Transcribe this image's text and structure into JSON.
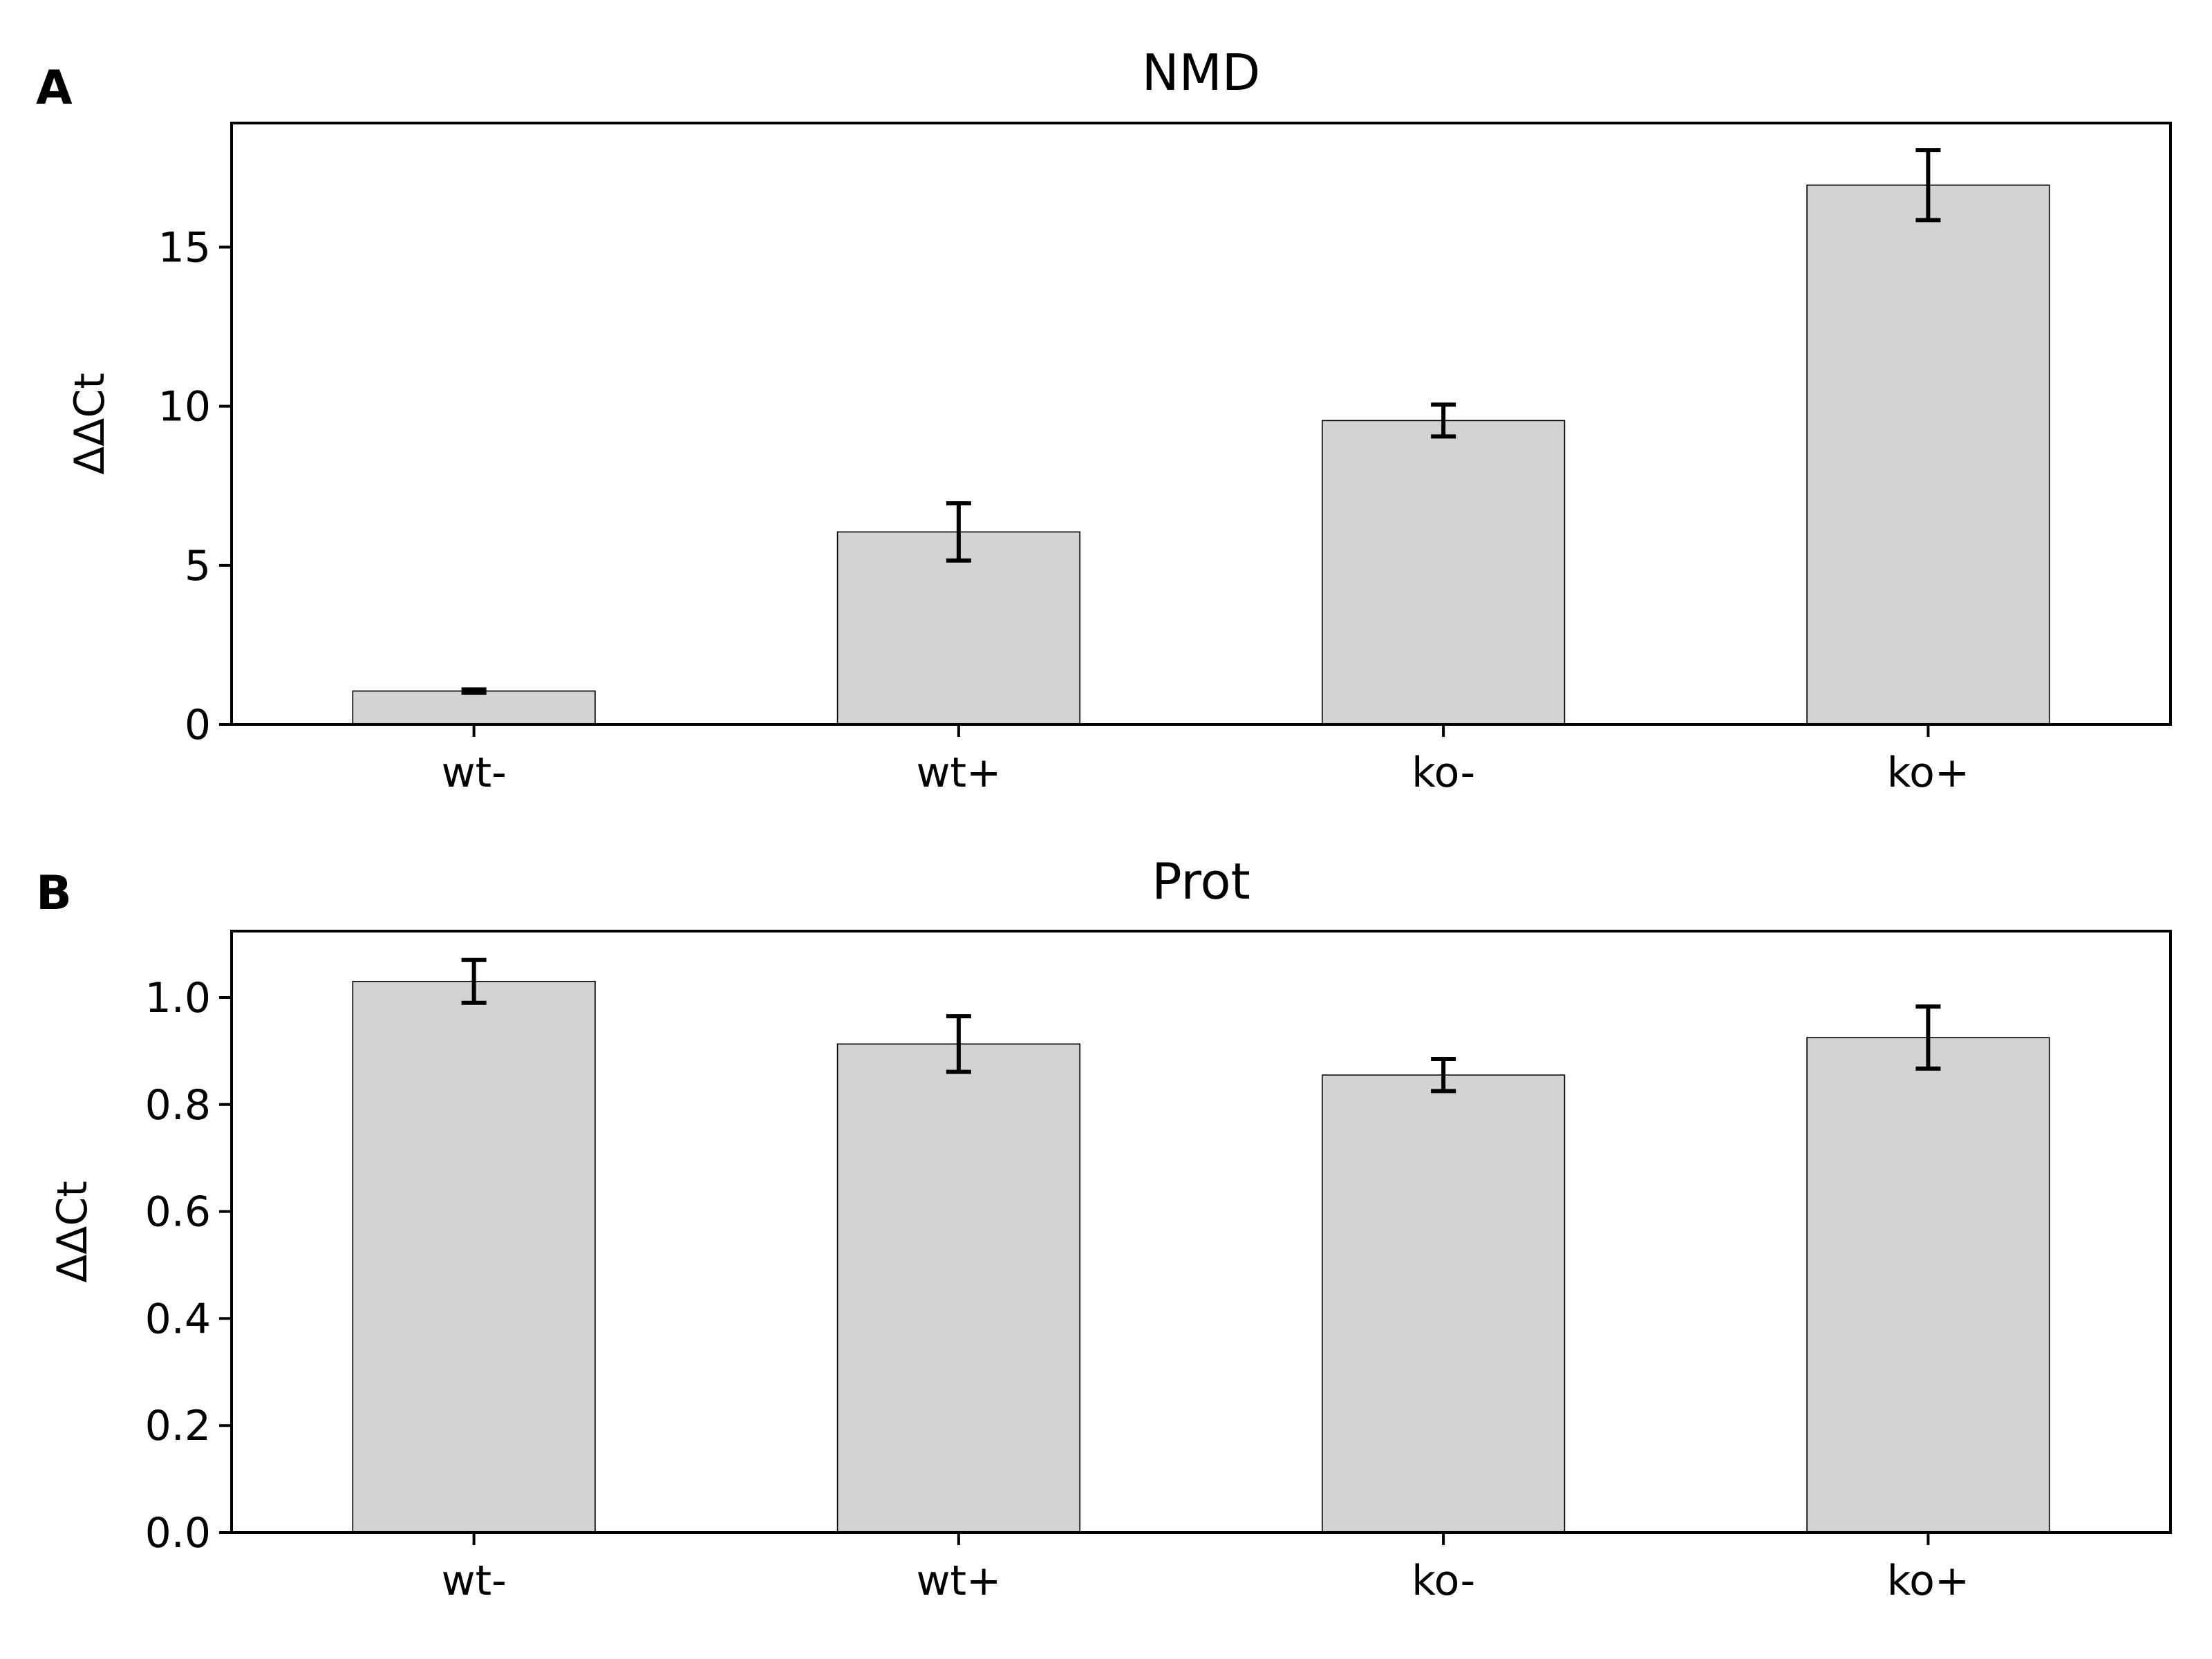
{
  "chart_data": [
    {
      "type": "bar",
      "panel_label": "A",
      "title": "NMD",
      "xlabel": "",
      "ylabel": "ΔΔCt",
      "categories": [
        "wt-",
        "wt+",
        "ko-",
        "ko+"
      ],
      "values": [
        1.05,
        6.05,
        9.55,
        16.95
      ],
      "errors": [
        0.05,
        0.9,
        0.5,
        1.1
      ],
      "ylim": [
        0,
        18.9
      ],
      "yticks": [
        0,
        5,
        10,
        15
      ],
      "ytick_labels": [
        "0",
        "5",
        "10",
        "15"
      ],
      "grid": false,
      "bar_color": "#d3d3d3",
      "edge_color": "#000000",
      "error_color": "#000000"
    },
    {
      "type": "bar",
      "panel_label": "B",
      "title": "Prot",
      "xlabel": "",
      "ylabel": "ΔΔCt",
      "categories": [
        "wt-",
        "wt+",
        "ko-",
        "ko+"
      ],
      "values": [
        1.03,
        0.913,
        0.855,
        0.925
      ],
      "errors": [
        0.04,
        0.052,
        0.03,
        0.058
      ],
      "ylim": [
        0,
        1.124
      ],
      "yticks": [
        0.0,
        0.2,
        0.4,
        0.6,
        0.8,
        1.0
      ],
      "ytick_labels": [
        "0.0",
        "0.2",
        "0.4",
        "0.6",
        "0.8",
        "1.0"
      ],
      "grid": false,
      "bar_color": "#d3d3d3",
      "edge_color": "#000000",
      "error_color": "#000000"
    }
  ]
}
